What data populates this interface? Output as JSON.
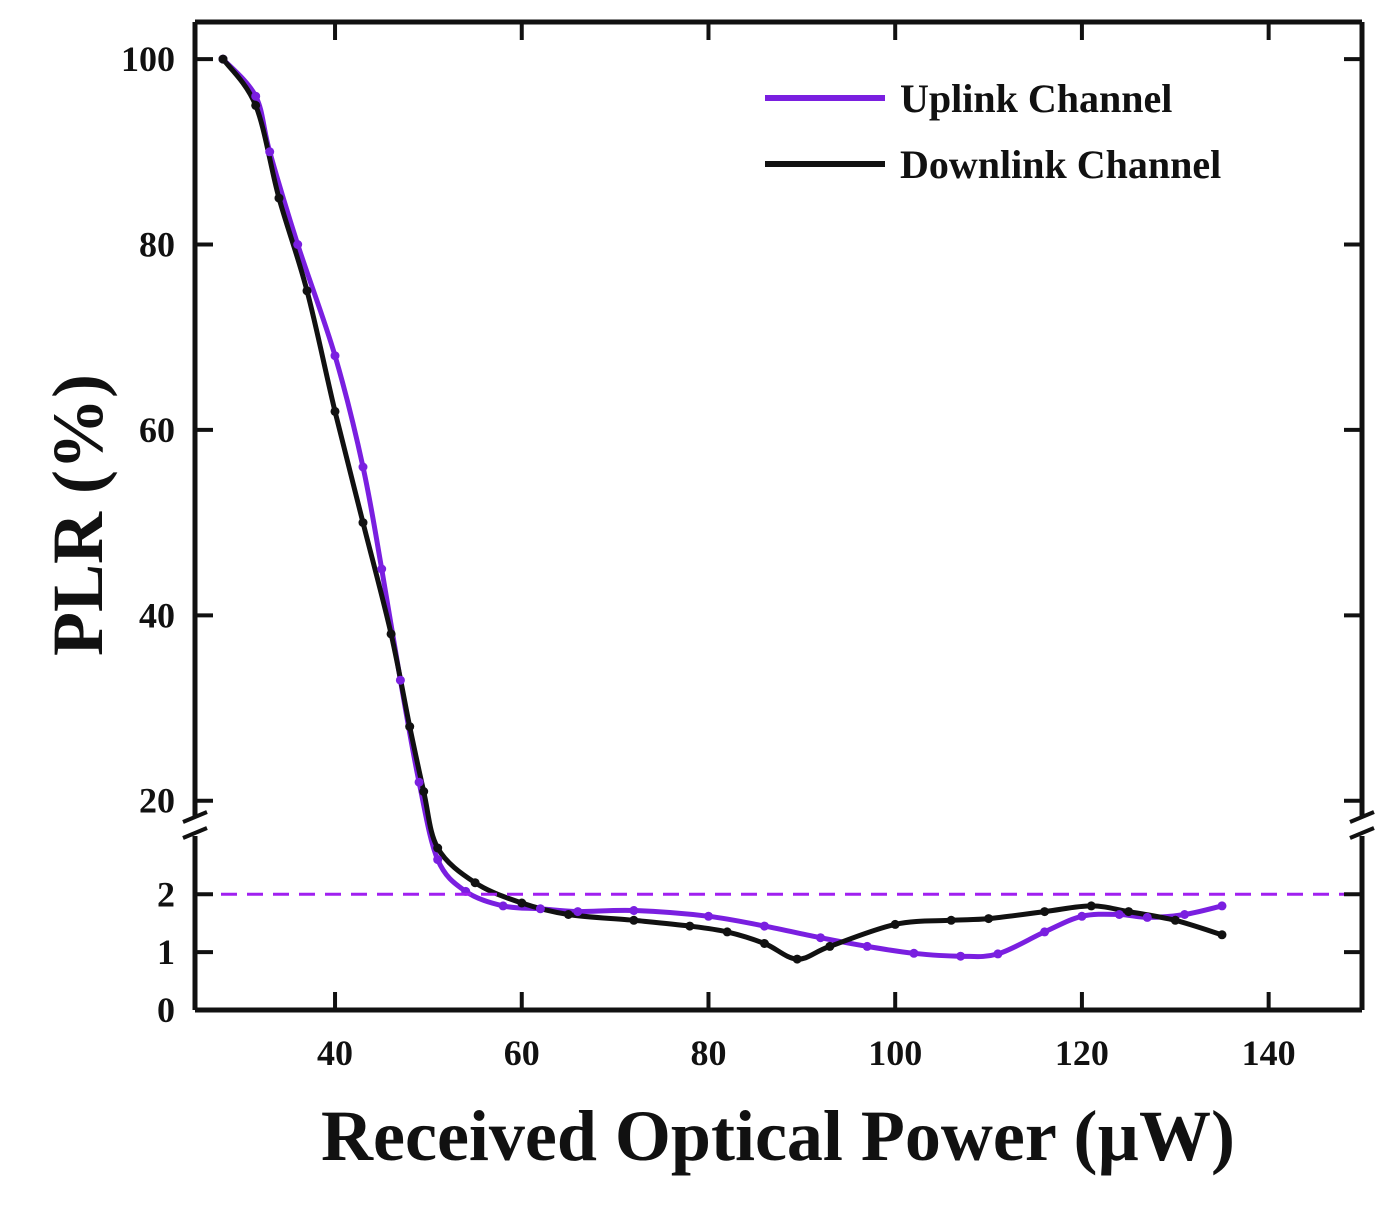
{
  "chart_data": {
    "type": "line",
    "xlabel": "Received Optical Power (µW)",
    "ylabel": "PLR (%)",
    "xlim": [
      25,
      150
    ],
    "x_ticks": [
      40,
      60,
      80,
      100,
      120,
      140
    ],
    "y_axis_break": {
      "lower_range": [
        0,
        2.8
      ],
      "upper_range": [
        19,
        104
      ],
      "lower_ticks": [
        0,
        1,
        2
      ],
      "upper_ticks": [
        20,
        40,
        60,
        80,
        100
      ]
    },
    "reference_line": {
      "y": 2,
      "style": "dashed",
      "color": "#a020f0"
    },
    "legend_position": "top-right",
    "grid": false,
    "series": [
      {
        "name": "Uplink Channel",
        "color": "#7a1fe0",
        "points": [
          [
            28,
            100
          ],
          [
            31.5,
            96
          ],
          [
            33,
            90
          ],
          [
            36,
            80
          ],
          [
            40,
            68
          ],
          [
            43,
            56
          ],
          [
            45,
            45
          ],
          [
            47,
            33
          ],
          [
            49,
            22
          ],
          [
            51,
            2.6
          ],
          [
            54,
            2.05
          ],
          [
            58,
            1.8
          ],
          [
            62,
            1.75
          ],
          [
            66,
            1.7
          ],
          [
            72,
            1.72
          ],
          [
            80,
            1.62
          ],
          [
            86,
            1.45
          ],
          [
            92,
            1.25
          ],
          [
            97,
            1.1
          ],
          [
            102,
            0.98
          ],
          [
            107,
            0.93
          ],
          [
            111,
            0.97
          ],
          [
            116,
            1.35
          ],
          [
            120,
            1.62
          ],
          [
            124,
            1.65
          ],
          [
            127,
            1.6
          ],
          [
            131,
            1.65
          ],
          [
            135,
            1.8
          ]
        ]
      },
      {
        "name": "Downlink Channel",
        "color": "#111111",
        "points": [
          [
            28,
            100
          ],
          [
            31.5,
            95
          ],
          [
            34,
            85
          ],
          [
            37,
            75
          ],
          [
            40,
            62
          ],
          [
            43,
            50
          ],
          [
            46,
            38
          ],
          [
            48,
            28
          ],
          [
            49.5,
            21
          ],
          [
            51,
            2.8
          ],
          [
            55,
            2.2
          ],
          [
            60,
            1.85
          ],
          [
            65,
            1.65
          ],
          [
            72,
            1.55
          ],
          [
            78,
            1.45
          ],
          [
            82,
            1.35
          ],
          [
            86,
            1.15
          ],
          [
            89.5,
            0.88
          ],
          [
            93,
            1.1
          ],
          [
            100,
            1.48
          ],
          [
            106,
            1.55
          ],
          [
            110,
            1.58
          ],
          [
            116,
            1.7
          ],
          [
            121,
            1.8
          ],
          [
            125,
            1.7
          ],
          [
            130,
            1.55
          ],
          [
            135,
            1.3
          ]
        ]
      }
    ]
  }
}
